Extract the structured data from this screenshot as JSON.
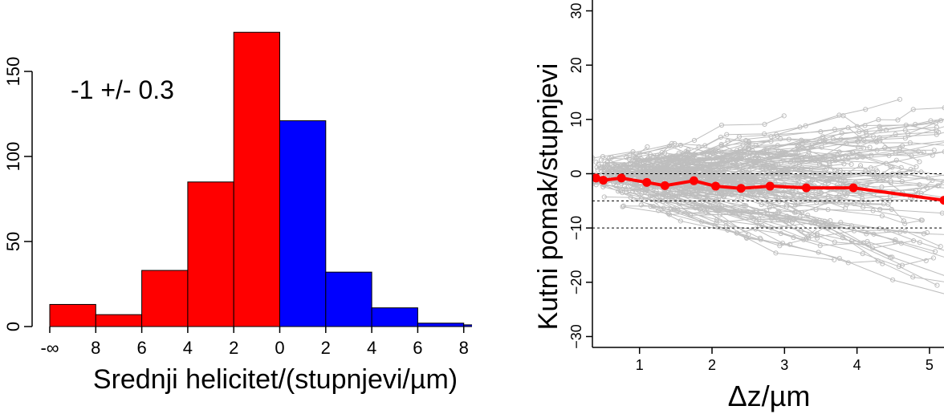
{
  "chart_data": [
    {
      "type": "bar",
      "annotation": "-1 +/- 0.3",
      "xlabel": "Srednji helicitet/(stupnjevi/µm)",
      "ylabel": "",
      "ylim": [
        0,
        175
      ],
      "y_ticks": [
        0,
        50,
        100,
        150
      ],
      "x_tick_labels": [
        "-∞",
        "8",
        "6",
        "4",
        "2",
        "0",
        "2",
        "4",
        "6",
        "8",
        "∞"
      ],
      "bins": [
        {
          "from": "-∞",
          "to": "8",
          "value": 13,
          "color": "#ff0000"
        },
        {
          "from": "8",
          "to": "6",
          "value": 7,
          "color": "#ff0000"
        },
        {
          "from": "6",
          "to": "4",
          "value": 33,
          "color": "#ff0000"
        },
        {
          "from": "4",
          "to": "2",
          "value": 85,
          "color": "#ff0000"
        },
        {
          "from": "2",
          "to": "0",
          "value": 173,
          "color": "#ff0000"
        },
        {
          "from": "0",
          "to": "2",
          "value": 121,
          "color": "#0000ff"
        },
        {
          "from": "2",
          "to": "4",
          "value": 32,
          "color": "#0000ff"
        },
        {
          "from": "4",
          "to": "6",
          "value": 11,
          "color": "#0000ff"
        },
        {
          "from": "6",
          "to": "8",
          "value": 2,
          "color": "#0000ff"
        },
        {
          "from": "8",
          "to": "∞",
          "value": 1,
          "color": "#0000ff"
        }
      ]
    },
    {
      "type": "line",
      "xlabel": "Δz/µm",
      "ylabel": "Kutni pomak/stupnjevi",
      "xlim": [
        0.35,
        5.2
      ],
      "ylim": [
        -32,
        32
      ],
      "x_ticks": [
        1,
        2,
        3,
        4,
        5
      ],
      "y_ticks": [
        -30,
        -20,
        -10,
        0,
        10,
        20,
        30
      ],
      "reference_lines": [
        0,
        -5,
        -10
      ],
      "background_color": "#bebebe",
      "mean_color": "#ff0000",
      "mean_series": {
        "x": [
          0.4,
          0.5,
          0.75,
          1.1,
          1.35,
          1.75,
          2.05,
          2.4,
          2.8,
          3.3,
          3.95,
          5.2
        ],
        "y": [
          -0.8,
          -1.2,
          -0.8,
          -1.6,
          -2.2,
          -1.3,
          -2.3,
          -2.7,
          -2.3,
          -2.6,
          -2.6,
          -4.9
        ]
      }
    }
  ]
}
